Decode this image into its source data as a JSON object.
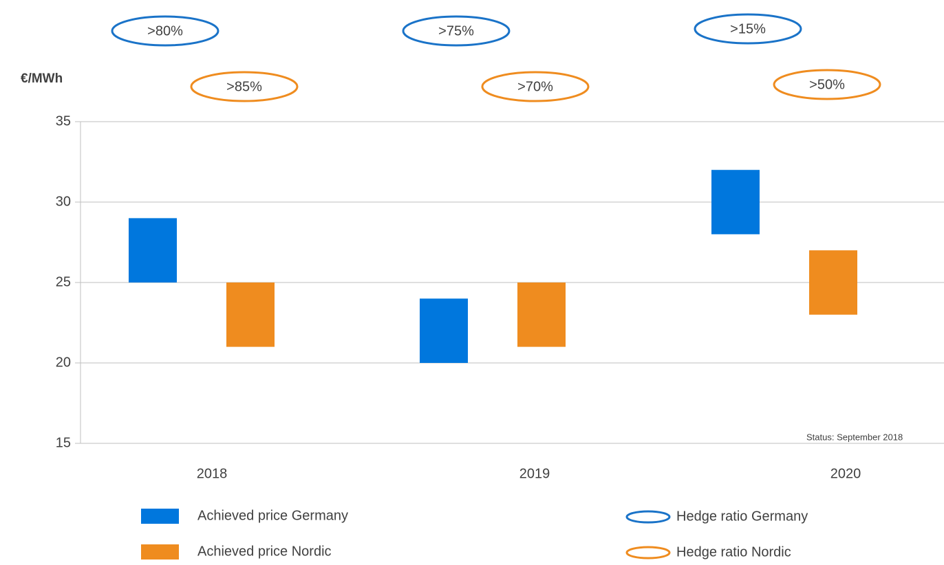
{
  "chart_data": {
    "type": "floating-bar",
    "y_axis_label": "€/MWh",
    "categories": [
      "2018",
      "2019",
      "2020"
    ],
    "ylim": [
      15,
      35
    ],
    "yticks": [
      15,
      20,
      25,
      30,
      35
    ],
    "grid": true,
    "series": [
      {
        "name": "Achieved price Germany",
        "color": "#0077dd",
        "values": [
          [
            25,
            29
          ],
          [
            20,
            24
          ],
          [
            28,
            32
          ]
        ]
      },
      {
        "name": "Achieved price Nordic",
        "color": "#ef8c1f",
        "values": [
          [
            21,
            25
          ],
          [
            21,
            25
          ],
          [
            23,
            27
          ]
        ]
      }
    ],
    "hedge_series": [
      {
        "name": "Hedge ratio Germany",
        "color": "#1a73c8",
        "labels": [
          ">80%",
          ">75%",
          ">15%"
        ]
      },
      {
        "name": "Hedge ratio Nordic",
        "color": "#ef8c1f",
        "labels": [
          ">85%",
          ">70%",
          ">50%"
        ]
      }
    ],
    "annotation": "Status: September 2018"
  }
}
